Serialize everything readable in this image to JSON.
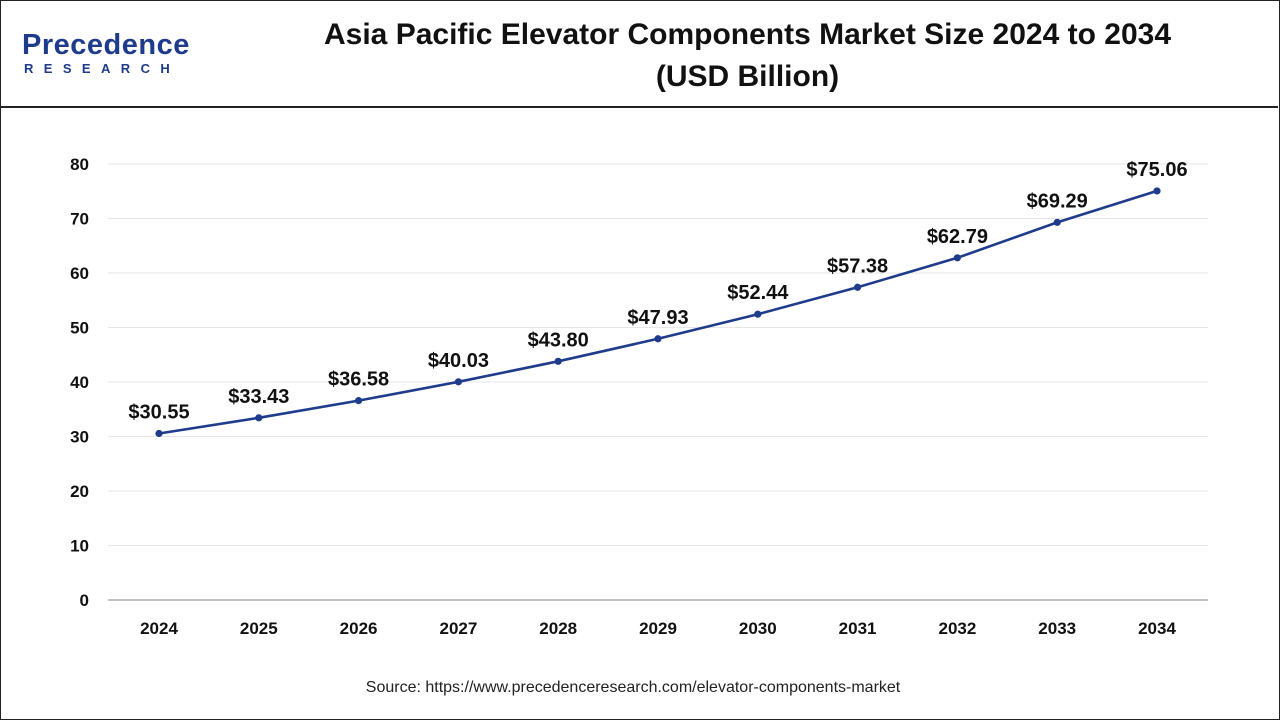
{
  "header": {
    "logo_main": "Precedence",
    "logo_sub": "RESEARCH",
    "title_line1": "Asia Pacific Elevator Components Market Size 2024 to 2034",
    "title_line2": "(USD Billion)"
  },
  "source": {
    "label": "Source:",
    "url": "https://www.precedenceresearch.com/elevator-components-market"
  },
  "colors": {
    "line": "#1f3c8c",
    "marker": "#1f3c8c",
    "grid": "#e6e6e6",
    "axis": "#999999",
    "brand": "#1f3c8c"
  },
  "chart_data": {
    "type": "line",
    "title": "Asia Pacific Elevator Components Market Size 2024 to 2034 (USD Billion)",
    "xlabel": "",
    "ylabel": "",
    "categories": [
      "2024",
      "2025",
      "2026",
      "2027",
      "2028",
      "2029",
      "2030",
      "2031",
      "2032",
      "2033",
      "2034"
    ],
    "series": [
      {
        "values": [
          30.55,
          33.43,
          36.58,
          40.03,
          43.8,
          47.93,
          52.44,
          57.38,
          62.79,
          69.29,
          75.06
        ],
        "labels": [
          "$30.55",
          "$33.43",
          "$36.58",
          "$40.03",
          "$43.80",
          "$47.93",
          "$52.44",
          "$57.38",
          "$62.79",
          "$69.29",
          "$75.06"
        ]
      }
    ],
    "ylim": [
      0,
      80
    ],
    "yticks": [
      0,
      10,
      20,
      30,
      40,
      50,
      60,
      70,
      80
    ],
    "grid": true,
    "legend": "none"
  }
}
